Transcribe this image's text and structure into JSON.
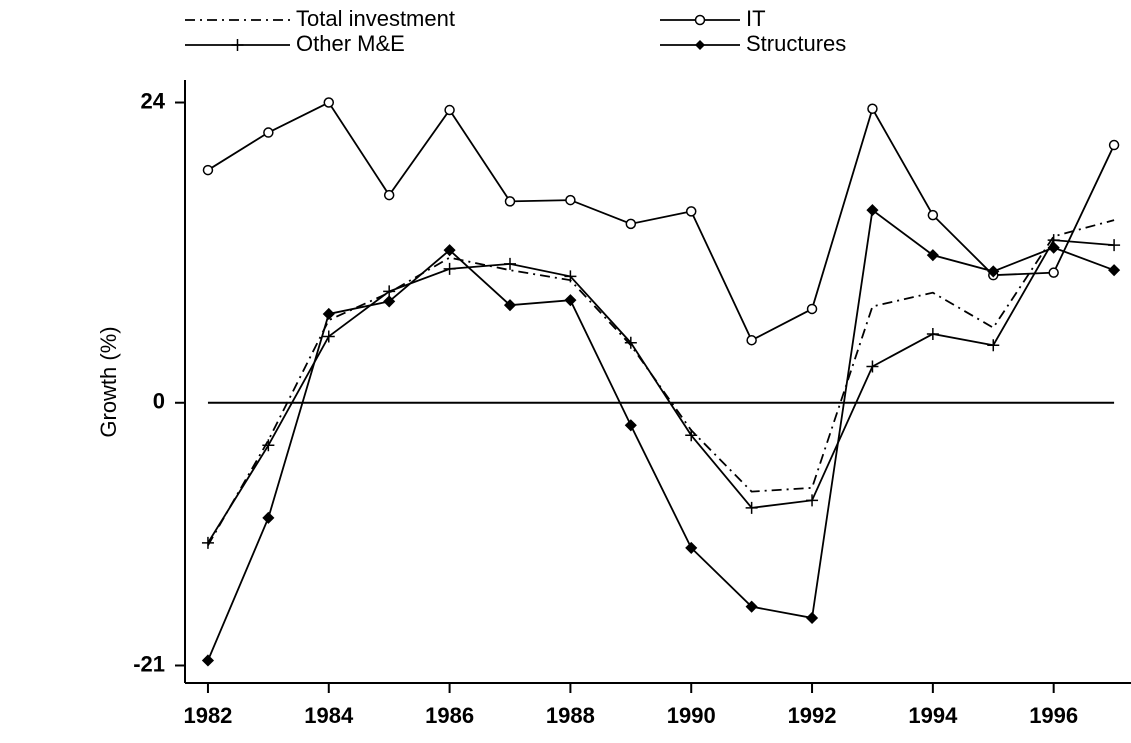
{
  "chart_data": {
    "type": "line",
    "y_label": "Growth (%)",
    "x": [
      1982,
      1983,
      1984,
      1985,
      1986,
      1987,
      1988,
      1989,
      1990,
      1991,
      1992,
      1993,
      1994,
      1995,
      1996,
      1997
    ],
    "series": [
      {
        "name": "Total investment",
        "color": "#000000",
        "marker": "none",
        "dash": "dashdot",
        "values": [
          -11.4,
          -3.0,
          6.6,
          8.8,
          11.6,
          10.6,
          9.8,
          4.6,
          -2.2,
          -7.1,
          -6.8,
          7.7,
          8.8,
          6.0,
          13.3,
          14.6
        ]
      },
      {
        "name": "IT",
        "color": "#000000",
        "marker": "circle",
        "dash": "solid",
        "values": [
          18.6,
          21.6,
          24.0,
          16.6,
          23.4,
          16.1,
          16.2,
          14.3,
          15.3,
          5.0,
          7.5,
          23.5,
          15.0,
          10.2,
          10.4,
          20.6
        ]
      },
      {
        "name": "Other M&E",
        "color": "#000000",
        "marker": "plus",
        "dash": "solid",
        "values": [
          -11.2,
          -3.4,
          5.3,
          8.9,
          10.7,
          11.1,
          10.1,
          4.8,
          -2.6,
          -8.4,
          -7.8,
          2.9,
          5.5,
          4.6,
          13.0,
          12.6
        ]
      },
      {
        "name": "Structures",
        "color": "#000000",
        "marker": "diamond",
        "dash": "solid",
        "values": [
          -20.6,
          -9.2,
          7.1,
          8.1,
          12.2,
          7.8,
          8.2,
          -1.8,
          -11.6,
          -16.3,
          -17.2,
          15.4,
          11.8,
          10.5,
          12.4,
          10.6
        ]
      }
    ],
    "xlim": [
      1981.62,
      1997.28
    ],
    "xticks": [
      1982,
      1984,
      1986,
      1988,
      1990,
      1992,
      1994,
      1996
    ],
    "ylim": [
      -22.4,
      25.8
    ],
    "yticks": [
      24,
      0,
      -21
    ],
    "hline": 0,
    "legend": "top"
  }
}
